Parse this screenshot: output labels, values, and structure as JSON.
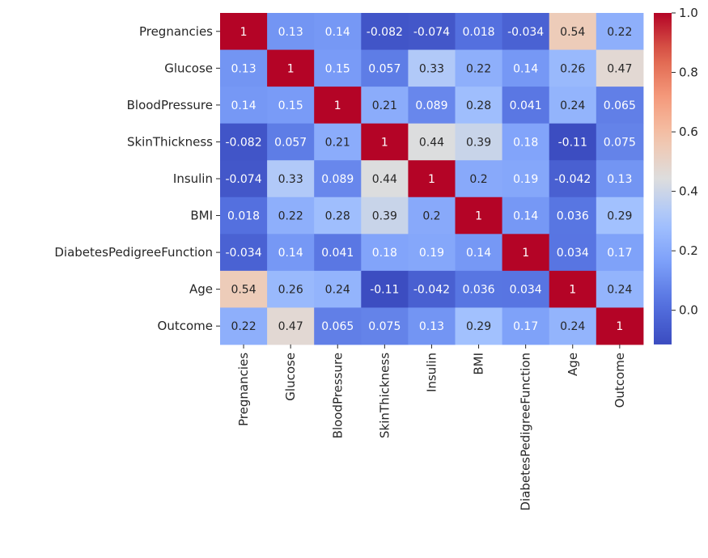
{
  "chart_data": {
    "type": "heatmap",
    "labels": [
      "Pregnancies",
      "Glucose",
      "BloodPressure",
      "SkinThickness",
      "Insulin",
      "BMI",
      "DiabetesPedigreeFunction",
      "Age",
      "Outcome"
    ],
    "value_labels": [
      [
        "1",
        "0.13",
        "0.14",
        "-0.082",
        "-0.074",
        "0.018",
        "-0.034",
        "0.54",
        "0.22"
      ],
      [
        "0.13",
        "1",
        "0.15",
        "0.057",
        "0.33",
        "0.22",
        "0.14",
        "0.26",
        "0.47"
      ],
      [
        "0.14",
        "0.15",
        "1",
        "0.21",
        "0.089",
        "0.28",
        "0.041",
        "0.24",
        "0.065"
      ],
      [
        "-0.082",
        "0.057",
        "0.21",
        "1",
        "0.44",
        "0.39",
        "0.18",
        "-0.11",
        "0.075"
      ],
      [
        "-0.074",
        "0.33",
        "0.089",
        "0.44",
        "1",
        "0.2",
        "0.19",
        "-0.042",
        "0.13"
      ],
      [
        "0.018",
        "0.22",
        "0.28",
        "0.39",
        "0.2",
        "1",
        "0.14",
        "0.036",
        "0.29"
      ],
      [
        "-0.034",
        "0.14",
        "0.041",
        "0.18",
        "0.19",
        "0.14",
        "1",
        "0.034",
        "0.17"
      ],
      [
        "0.54",
        "0.26",
        "0.24",
        "-0.11",
        "-0.042",
        "0.036",
        "0.034",
        "1",
        "0.24"
      ],
      [
        "0.22",
        "0.47",
        "0.065",
        "0.075",
        "0.13",
        "0.29",
        "0.17",
        "0.24",
        "1"
      ]
    ],
    "colormap": "coolwarm",
    "color_range": [
      -0.115,
      1.0
    ],
    "colorbar_ticks": [
      "0.0",
      "0.2",
      "0.4",
      "0.6",
      "0.8",
      "1.0"
    ],
    "colorbar_tick_values": [
      0.0,
      0.2,
      0.4,
      0.6,
      0.8,
      1.0
    ],
    "colors": {
      "low": "#3b4cc0",
      "mid": "#dddddd",
      "high": "#b40426"
    }
  }
}
